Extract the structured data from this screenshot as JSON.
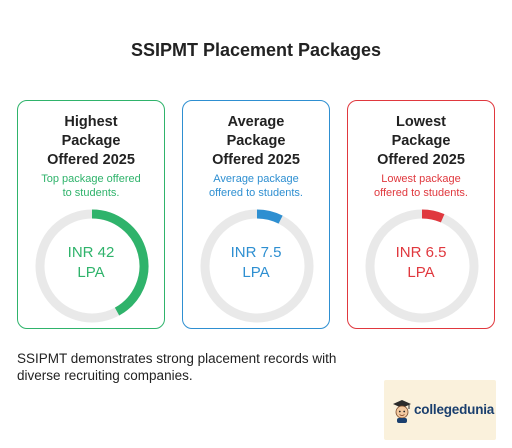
{
  "page": {
    "title": "SSIPMT Placement Packages"
  },
  "cards": [
    {
      "title_lines": [
        "Highest",
        "Package",
        "Offered 2025"
      ],
      "description_lines": [
        "Top package offered",
        "to students."
      ],
      "value_lines": [
        "INR 42",
        "LPA"
      ],
      "amount_lpa": 42,
      "gauge_fraction": 0.42,
      "color": "#2fb36b"
    },
    {
      "title_lines": [
        "Average",
        "Package",
        "Offered 2025"
      ],
      "description_lines": [
        "Average package",
        "offered to students."
      ],
      "value_lines": [
        "INR 7.5",
        "LPA"
      ],
      "amount_lpa": 7.5,
      "gauge_fraction": 0.075,
      "color": "#2e8fd1"
    },
    {
      "title_lines": [
        "Lowest",
        "Package",
        "Offered 2025"
      ],
      "description_lines": [
        "Lowest package",
        "offered to students."
      ],
      "value_lines": [
        "INR 6.5",
        "LPA"
      ],
      "amount_lpa": 6.5,
      "gauge_fraction": 0.065,
      "color": "#e0383e"
    }
  ],
  "footer": {
    "lines": [
      "SSIPMT demonstrates strong placement records with",
      "diverse recruiting companies."
    ]
  },
  "brand": {
    "name": "collegedunia",
    "logo_icon": "graduate-mascot-icon"
  },
  "colors": {
    "track": "#e9e9e9",
    "text": "#222222",
    "brand_bg": "#faf1dc",
    "brand_text": "#1a3f6e"
  }
}
